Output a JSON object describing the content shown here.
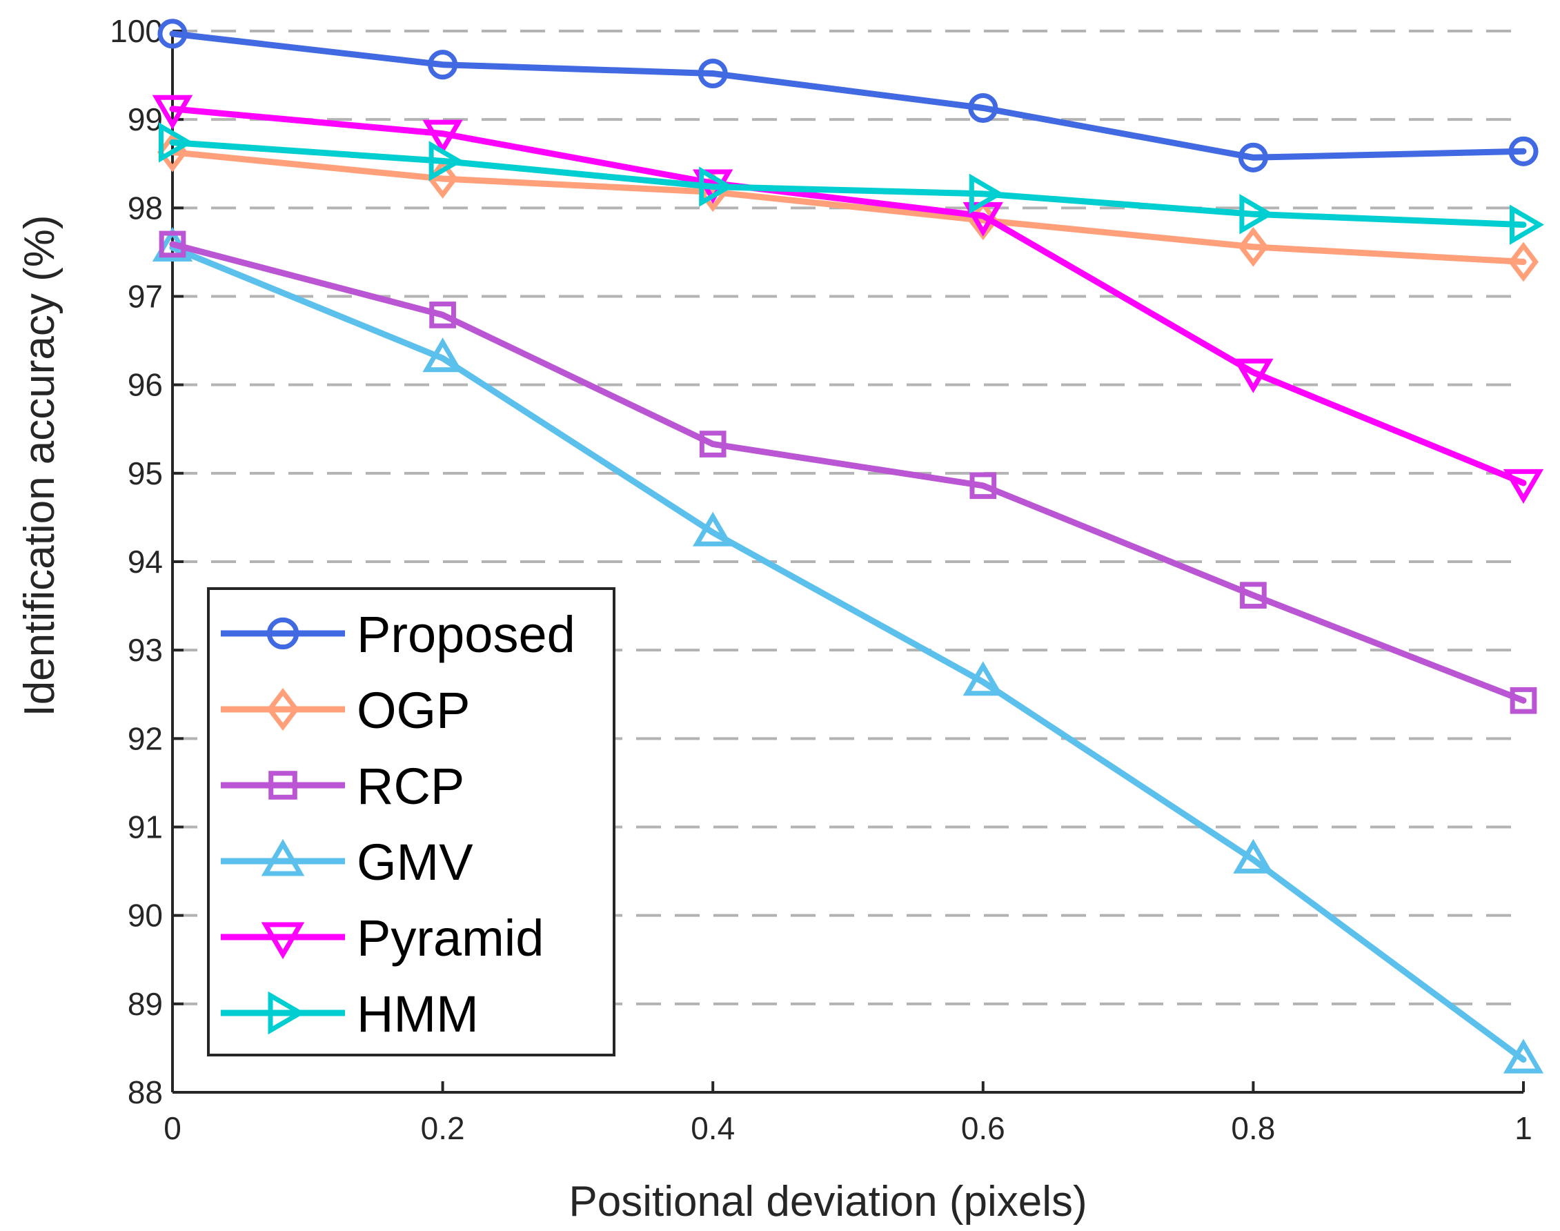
{
  "chart_data": {
    "type": "line",
    "title": "",
    "xlabel": "Positional deviation (pixels)",
    "ylabel": "Identification accuracy (%)",
    "x": [
      0,
      0.2,
      0.4,
      0.6,
      0.8,
      1
    ],
    "xlim": [
      0,
      1
    ],
    "ylim": [
      88,
      100
    ],
    "xticks": [
      0,
      0.2,
      0.4,
      0.6,
      0.8,
      1
    ],
    "xtick_labels": [
      "0",
      "0.2",
      "0.4",
      "0.6",
      "0.8",
      "1"
    ],
    "yticks": [
      88,
      89,
      90,
      91,
      92,
      93,
      94,
      95,
      96,
      97,
      98,
      99,
      100
    ],
    "ytick_labels": [
      "88",
      "89",
      "90",
      "91",
      "92",
      "93",
      "94",
      "95",
      "96",
      "97",
      "98",
      "99",
      "100"
    ],
    "grid": "horizontal dashed",
    "legend_position": "lower-left",
    "series": [
      {
        "name": "Proposed",
        "color": "#4169E1",
        "marker": "circle",
        "values": [
          99.97,
          99.62,
          99.52,
          99.13,
          98.57,
          98.64
        ]
      },
      {
        "name": "OGP",
        "color": "#FFA07A",
        "marker": "diamond",
        "values": [
          98.63,
          98.33,
          98.18,
          97.86,
          97.56,
          97.39
        ]
      },
      {
        "name": "RCP",
        "color": "#BA55D3",
        "marker": "square",
        "values": [
          97.59,
          96.79,
          95.33,
          94.86,
          93.62,
          92.43
        ]
      },
      {
        "name": "GMV",
        "color": "#5BC0EB",
        "marker": "triangle-up",
        "values": [
          97.55,
          96.3,
          94.33,
          92.64,
          90.63,
          88.37
        ]
      },
      {
        "name": "Pyramid",
        "color": "#FF00FF",
        "marker": "triangle-down",
        "values": [
          99.12,
          98.84,
          98.28,
          97.91,
          96.14,
          94.89
        ]
      },
      {
        "name": "HMM",
        "color": "#00CED1",
        "marker": "triangle-right",
        "values": [
          98.74,
          98.53,
          98.24,
          98.16,
          97.93,
          97.81
        ]
      }
    ]
  }
}
